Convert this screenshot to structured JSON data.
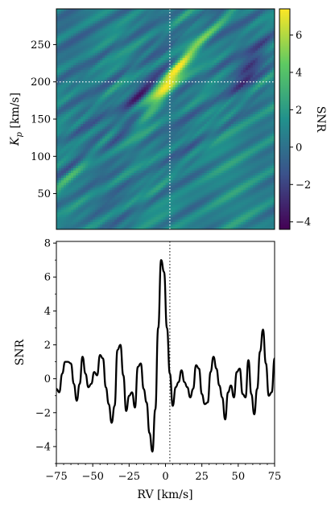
{
  "chart_data": [
    {
      "type": "heatmap",
      "title": "",
      "xlabel": "",
      "ylabel": "K_p [km/s]",
      "ylabel_parts": {
        "base": "K",
        "sub": "p",
        "unit": " [km/s]"
      },
      "xlim": [
        -75,
        75
      ],
      "ylim": [
        2,
        298
      ],
      "yticks": [
        50,
        100,
        150,
        200,
        250
      ],
      "colorbar": {
        "label": "SNR",
        "range": [
          -4.4,
          7.4
        ],
        "ticks": [
          -4,
          -2,
          0,
          2,
          4,
          6
        ],
        "colormap": "viridis",
        "colors": [
          "#440154",
          "#3b528b",
          "#21918c",
          "#5ec962",
          "#fde725"
        ]
      },
      "peak": {
        "rv": 3,
        "kp": 200,
        "snr": 7.4
      },
      "marker_lines": {
        "rv": 3,
        "kp": 200,
        "style": "dotted",
        "color": "#ffffff"
      }
    },
    {
      "type": "line",
      "title": "",
      "xlabel": "RV [km/s]",
      "ylabel": "SNR",
      "xlim": [
        -75,
        75
      ],
      "ylim": [
        -5,
        8.1
      ],
      "xticks": [
        -75,
        -50,
        -25,
        0,
        25,
        50,
        75
      ],
      "yticks": [
        -4,
        -2,
        0,
        2,
        4,
        6,
        8
      ],
      "marker_line": {
        "rv": 3,
        "style": "dotted",
        "color": "#000000"
      },
      "series": [
        {
          "color": "#000000",
          "x": [
            -75,
            -73,
            -71,
            -69,
            -67,
            -65,
            -63,
            -61,
            -59,
            -57,
            -55,
            -53,
            -51,
            -49,
            -47,
            -45,
            -43,
            -41,
            -39,
            -37,
            -35,
            -33,
            -31,
            -29,
            -27,
            -25,
            -23,
            -21,
            -19,
            -17,
            -15,
            -13,
            -11,
            -9,
            -7,
            -5,
            -3,
            -1,
            1,
            3,
            5,
            7,
            9,
            11,
            13,
            15,
            17,
            19,
            21,
            23,
            25,
            27,
            29,
            31,
            33,
            35,
            37,
            39,
            41,
            43,
            45,
            47,
            49,
            51,
            53,
            55,
            57,
            59,
            61,
            63,
            65,
            67,
            69,
            71,
            73,
            75
          ],
          "y": [
            -0.6,
            -0.8,
            0.3,
            1.0,
            1.0,
            0.9,
            -0.3,
            -1.3,
            -0.3,
            1.3,
            0.3,
            -0.5,
            -0.3,
            0.4,
            0.2,
            1.4,
            1.2,
            -0.5,
            -1.5,
            -2.6,
            -1.6,
            1.7,
            2.0,
            0.2,
            -1.9,
            -1.0,
            -0.8,
            -1.7,
            0.7,
            0.9,
            -0.6,
            -1.4,
            -3.2,
            -4.3,
            -1.8,
            3.0,
            7.0,
            6.3,
            3.0,
            0.3,
            -1.6,
            -0.5,
            -0.2,
            0.5,
            -0.2,
            -0.5,
            -1.1,
            -0.6,
            0.8,
            0.6,
            -0.9,
            -1.5,
            -1.4,
            0.4,
            1.3,
            0.6,
            -0.4,
            -1.1,
            -2.4,
            -0.8,
            -0.4,
            -1.1,
            0.4,
            0.6,
            -0.9,
            -1.1,
            1.1,
            -0.9,
            -2.1,
            -0.6,
            1.6,
            2.9,
            0.9,
            -1.0,
            -0.8,
            1.2
          ]
        }
      ]
    }
  ]
}
